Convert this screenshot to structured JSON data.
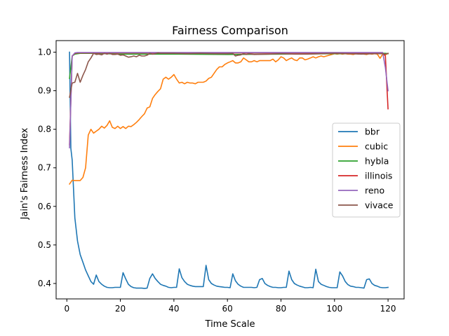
{
  "chart_data": {
    "type": "line",
    "title": "Fairness Comparison",
    "xlabel": "Time Scale",
    "ylabel": "Jain's Fairness Index",
    "xlim": [
      -4,
      126
    ],
    "ylim": [
      0.36,
      1.03
    ],
    "xticks": [
      0,
      20,
      40,
      60,
      80,
      100,
      120
    ],
    "yticks": [
      0.4,
      0.5,
      0.6,
      0.7,
      0.8,
      0.9,
      1.0
    ],
    "xtick_labels": [
      "0",
      "20",
      "40",
      "60",
      "80",
      "100",
      "120"
    ],
    "ytick_labels": [
      "0.4",
      "0.5",
      "0.6",
      "0.7",
      "0.8",
      "0.9",
      "1.0"
    ],
    "grid": false,
    "legend_position": "center-right",
    "series": [
      {
        "name": "bbr",
        "color": "#1f77b4",
        "x": [
          1,
          1.5,
          2,
          3,
          4,
          5,
          6,
          7,
          8,
          9,
          10,
          11,
          12,
          13,
          14,
          15,
          16,
          17,
          18,
          19,
          20,
          21,
          22,
          23,
          24,
          25,
          26,
          27,
          28,
          29,
          30,
          31,
          32,
          33,
          34,
          35,
          36,
          37,
          38,
          39,
          40,
          41,
          42,
          43,
          44,
          45,
          46,
          47,
          48,
          49,
          50,
          51,
          52,
          53,
          54,
          55,
          56,
          57,
          58,
          59,
          60,
          61,
          62,
          63,
          64,
          65,
          66,
          67,
          68,
          69,
          70,
          71,
          72,
          73,
          74,
          75,
          76,
          77,
          78,
          79,
          80,
          81,
          82,
          83,
          84,
          85,
          86,
          87,
          88,
          89,
          90,
          91,
          92,
          93,
          94,
          95,
          96,
          97,
          98,
          99,
          100,
          101,
          102,
          103,
          104,
          105,
          106,
          107,
          108,
          109,
          110,
          111,
          112,
          113,
          114,
          115,
          116,
          117,
          118,
          119,
          120
        ],
        "y": [
          1.0,
          0.75,
          0.72,
          0.57,
          0.51,
          0.475,
          0.455,
          0.435,
          0.42,
          0.405,
          0.398,
          0.422,
          0.405,
          0.398,
          0.393,
          0.39,
          0.389,
          0.389,
          0.39,
          0.39,
          0.39,
          0.428,
          0.412,
          0.398,
          0.392,
          0.389,
          0.388,
          0.388,
          0.388,
          0.387,
          0.388,
          0.413,
          0.425,
          0.413,
          0.405,
          0.398,
          0.395,
          0.393,
          0.39,
          0.389,
          0.39,
          0.39,
          0.438,
          0.415,
          0.405,
          0.398,
          0.395,
          0.393,
          0.392,
          0.392,
          0.392,
          0.392,
          0.447,
          0.41,
          0.4,
          0.396,
          0.393,
          0.392,
          0.391,
          0.39,
          0.39,
          0.389,
          0.425,
          0.407,
          0.398,
          0.393,
          0.39,
          0.39,
          0.39,
          0.39,
          0.389,
          0.39,
          0.41,
          0.413,
          0.4,
          0.395,
          0.392,
          0.39,
          0.39,
          0.389,
          0.389,
          0.39,
          0.39,
          0.432,
          0.41,
          0.4,
          0.396,
          0.393,
          0.391,
          0.389,
          0.389,
          0.39,
          0.389,
          0.437,
          0.405,
          0.398,
          0.395,
          0.392,
          0.39,
          0.389,
          0.389,
          0.389,
          0.43,
          0.42,
          0.405,
          0.397,
          0.393,
          0.392,
          0.39,
          0.39,
          0.389,
          0.388,
          0.41,
          0.412,
          0.4,
          0.395,
          0.393,
          0.39,
          0.389,
          0.389,
          0.39
        ]
      },
      {
        "name": "cubic",
        "color": "#ff7f0e",
        "x": [
          1,
          2,
          3,
          4,
          5,
          6,
          7,
          8,
          9,
          10,
          11,
          12,
          13,
          14,
          15,
          16,
          17,
          18,
          19,
          20,
          21,
          22,
          23,
          24,
          25,
          26,
          27,
          28,
          29,
          30,
          31,
          32,
          33,
          34,
          35,
          36,
          37,
          38,
          39,
          40,
          41,
          42,
          43,
          44,
          45,
          46,
          47,
          48,
          49,
          50,
          51,
          52,
          53,
          54,
          55,
          56,
          57,
          58,
          59,
          60,
          61,
          62,
          63,
          64,
          65,
          66,
          67,
          68,
          69,
          70,
          71,
          72,
          73,
          74,
          75,
          76,
          77,
          78,
          79,
          80,
          81,
          82,
          83,
          84,
          85,
          86,
          87,
          88,
          89,
          90,
          91,
          92,
          93,
          94,
          95,
          96,
          97,
          98,
          99,
          100,
          101,
          102,
          103,
          104,
          105,
          106,
          107,
          108,
          109,
          110,
          111,
          112,
          113,
          114,
          115,
          116,
          117,
          118,
          119,
          120
        ],
        "y": [
          0.658,
          0.668,
          0.667,
          0.667,
          0.667,
          0.675,
          0.7,
          0.785,
          0.8,
          0.79,
          0.795,
          0.8,
          0.808,
          0.803,
          0.81,
          0.822,
          0.805,
          0.802,
          0.808,
          0.802,
          0.807,
          0.802,
          0.808,
          0.807,
          0.812,
          0.818,
          0.825,
          0.833,
          0.84,
          0.855,
          0.858,
          0.88,
          0.89,
          0.898,
          0.905,
          0.93,
          0.935,
          0.93,
          0.935,
          0.942,
          0.93,
          0.92,
          0.922,
          0.918,
          0.922,
          0.92,
          0.92,
          0.918,
          0.922,
          0.922,
          0.922,
          0.925,
          0.932,
          0.935,
          0.945,
          0.955,
          0.962,
          0.962,
          0.968,
          0.972,
          0.975,
          0.978,
          0.972,
          0.972,
          0.975,
          0.985,
          0.98,
          0.975,
          0.975,
          0.978,
          0.975,
          0.978,
          0.978,
          0.978,
          0.978,
          0.978,
          0.982,
          0.975,
          0.98,
          0.988,
          0.985,
          0.978,
          0.982,
          0.985,
          0.98,
          0.978,
          0.985,
          0.985,
          0.98,
          0.982,
          0.985,
          0.988,
          0.985,
          0.988,
          0.99,
          0.988,
          0.99,
          0.992,
          0.994,
          0.996,
          0.995,
          0.996,
          0.995,
          0.996,
          0.995,
          0.995,
          0.994,
          0.996,
          0.995,
          0.996,
          0.995,
          0.994,
          0.996,
          0.995,
          0.996,
          0.995,
          0.984,
          0.995,
          0.993,
          0.997
        ]
      },
      {
        "name": "hybla",
        "color": "#2ca02c",
        "x": [
          1,
          2,
          3,
          4,
          5,
          6,
          8,
          10,
          20,
          40,
          60,
          80,
          100,
          110,
          115,
          118,
          119,
          120
        ],
        "y": [
          0.932,
          0.99,
          0.995,
          0.996,
          0.997,
          0.997,
          0.997,
          0.997,
          0.995,
          0.995,
          0.994,
          0.995,
          0.996,
          0.996,
          0.997,
          0.997,
          0.997,
          0.996
        ]
      },
      {
        "name": "illinois",
        "color": "#d62728",
        "x": [
          1,
          2,
          3,
          4,
          5,
          6,
          8,
          10,
          20,
          40,
          60,
          80,
          100,
          110,
          115,
          118,
          119,
          120
        ],
        "y": [
          0.76,
          0.99,
          0.997,
          0.998,
          0.998,
          0.998,
          0.998,
          0.998,
          0.998,
          0.998,
          0.998,
          0.998,
          0.998,
          0.998,
          0.998,
          0.998,
          0.99,
          0.853
        ]
      },
      {
        "name": "reno",
        "color": "#9467bd",
        "x": [
          1,
          2,
          3,
          4,
          5,
          6,
          8,
          10,
          20,
          40,
          60,
          80,
          100,
          110,
          115,
          118,
          119,
          120
        ],
        "y": [
          0.752,
          0.99,
          0.998,
          0.999,
          0.999,
          0.999,
          0.999,
          0.999,
          0.999,
          0.999,
          0.999,
          0.999,
          0.999,
          0.999,
          0.999,
          0.999,
          0.96,
          0.9
        ]
      },
      {
        "name": "vivace",
        "color": "#8c564b",
        "x": [
          1,
          2,
          3,
          4,
          5,
          6,
          7,
          8,
          9,
          10,
          11,
          12,
          13,
          14,
          15,
          16,
          17,
          18,
          19,
          20,
          21,
          22,
          23,
          24,
          25,
          26,
          27,
          28,
          29,
          30,
          31,
          32,
          33,
          34,
          35,
          40,
          45,
          50,
          55,
          60,
          62,
          63,
          64,
          65,
          66,
          67,
          68,
          70,
          75,
          80,
          85,
          90,
          95,
          100,
          105,
          110,
          115,
          118,
          119,
          120
        ],
        "y": [
          0.883,
          0.92,
          0.922,
          0.945,
          0.922,
          0.94,
          0.955,
          0.975,
          0.985,
          0.997,
          0.994,
          0.995,
          0.993,
          0.997,
          0.995,
          0.997,
          0.994,
          0.994,
          0.995,
          0.992,
          0.993,
          0.99,
          0.987,
          0.988,
          0.99,
          0.988,
          0.992,
          0.99,
          0.99,
          0.992,
          0.997,
          0.995,
          0.996,
          0.998,
          0.997,
          0.997,
          0.996,
          0.997,
          0.996,
          0.996,
          0.997,
          0.99,
          0.992,
          0.993,
          0.996,
          0.994,
          0.996,
          0.994,
          0.995,
          0.996,
          0.995,
          0.995,
          0.996,
          0.997,
          0.996,
          0.995,
          0.996,
          0.996,
          0.995,
          0.997
        ]
      }
    ]
  }
}
